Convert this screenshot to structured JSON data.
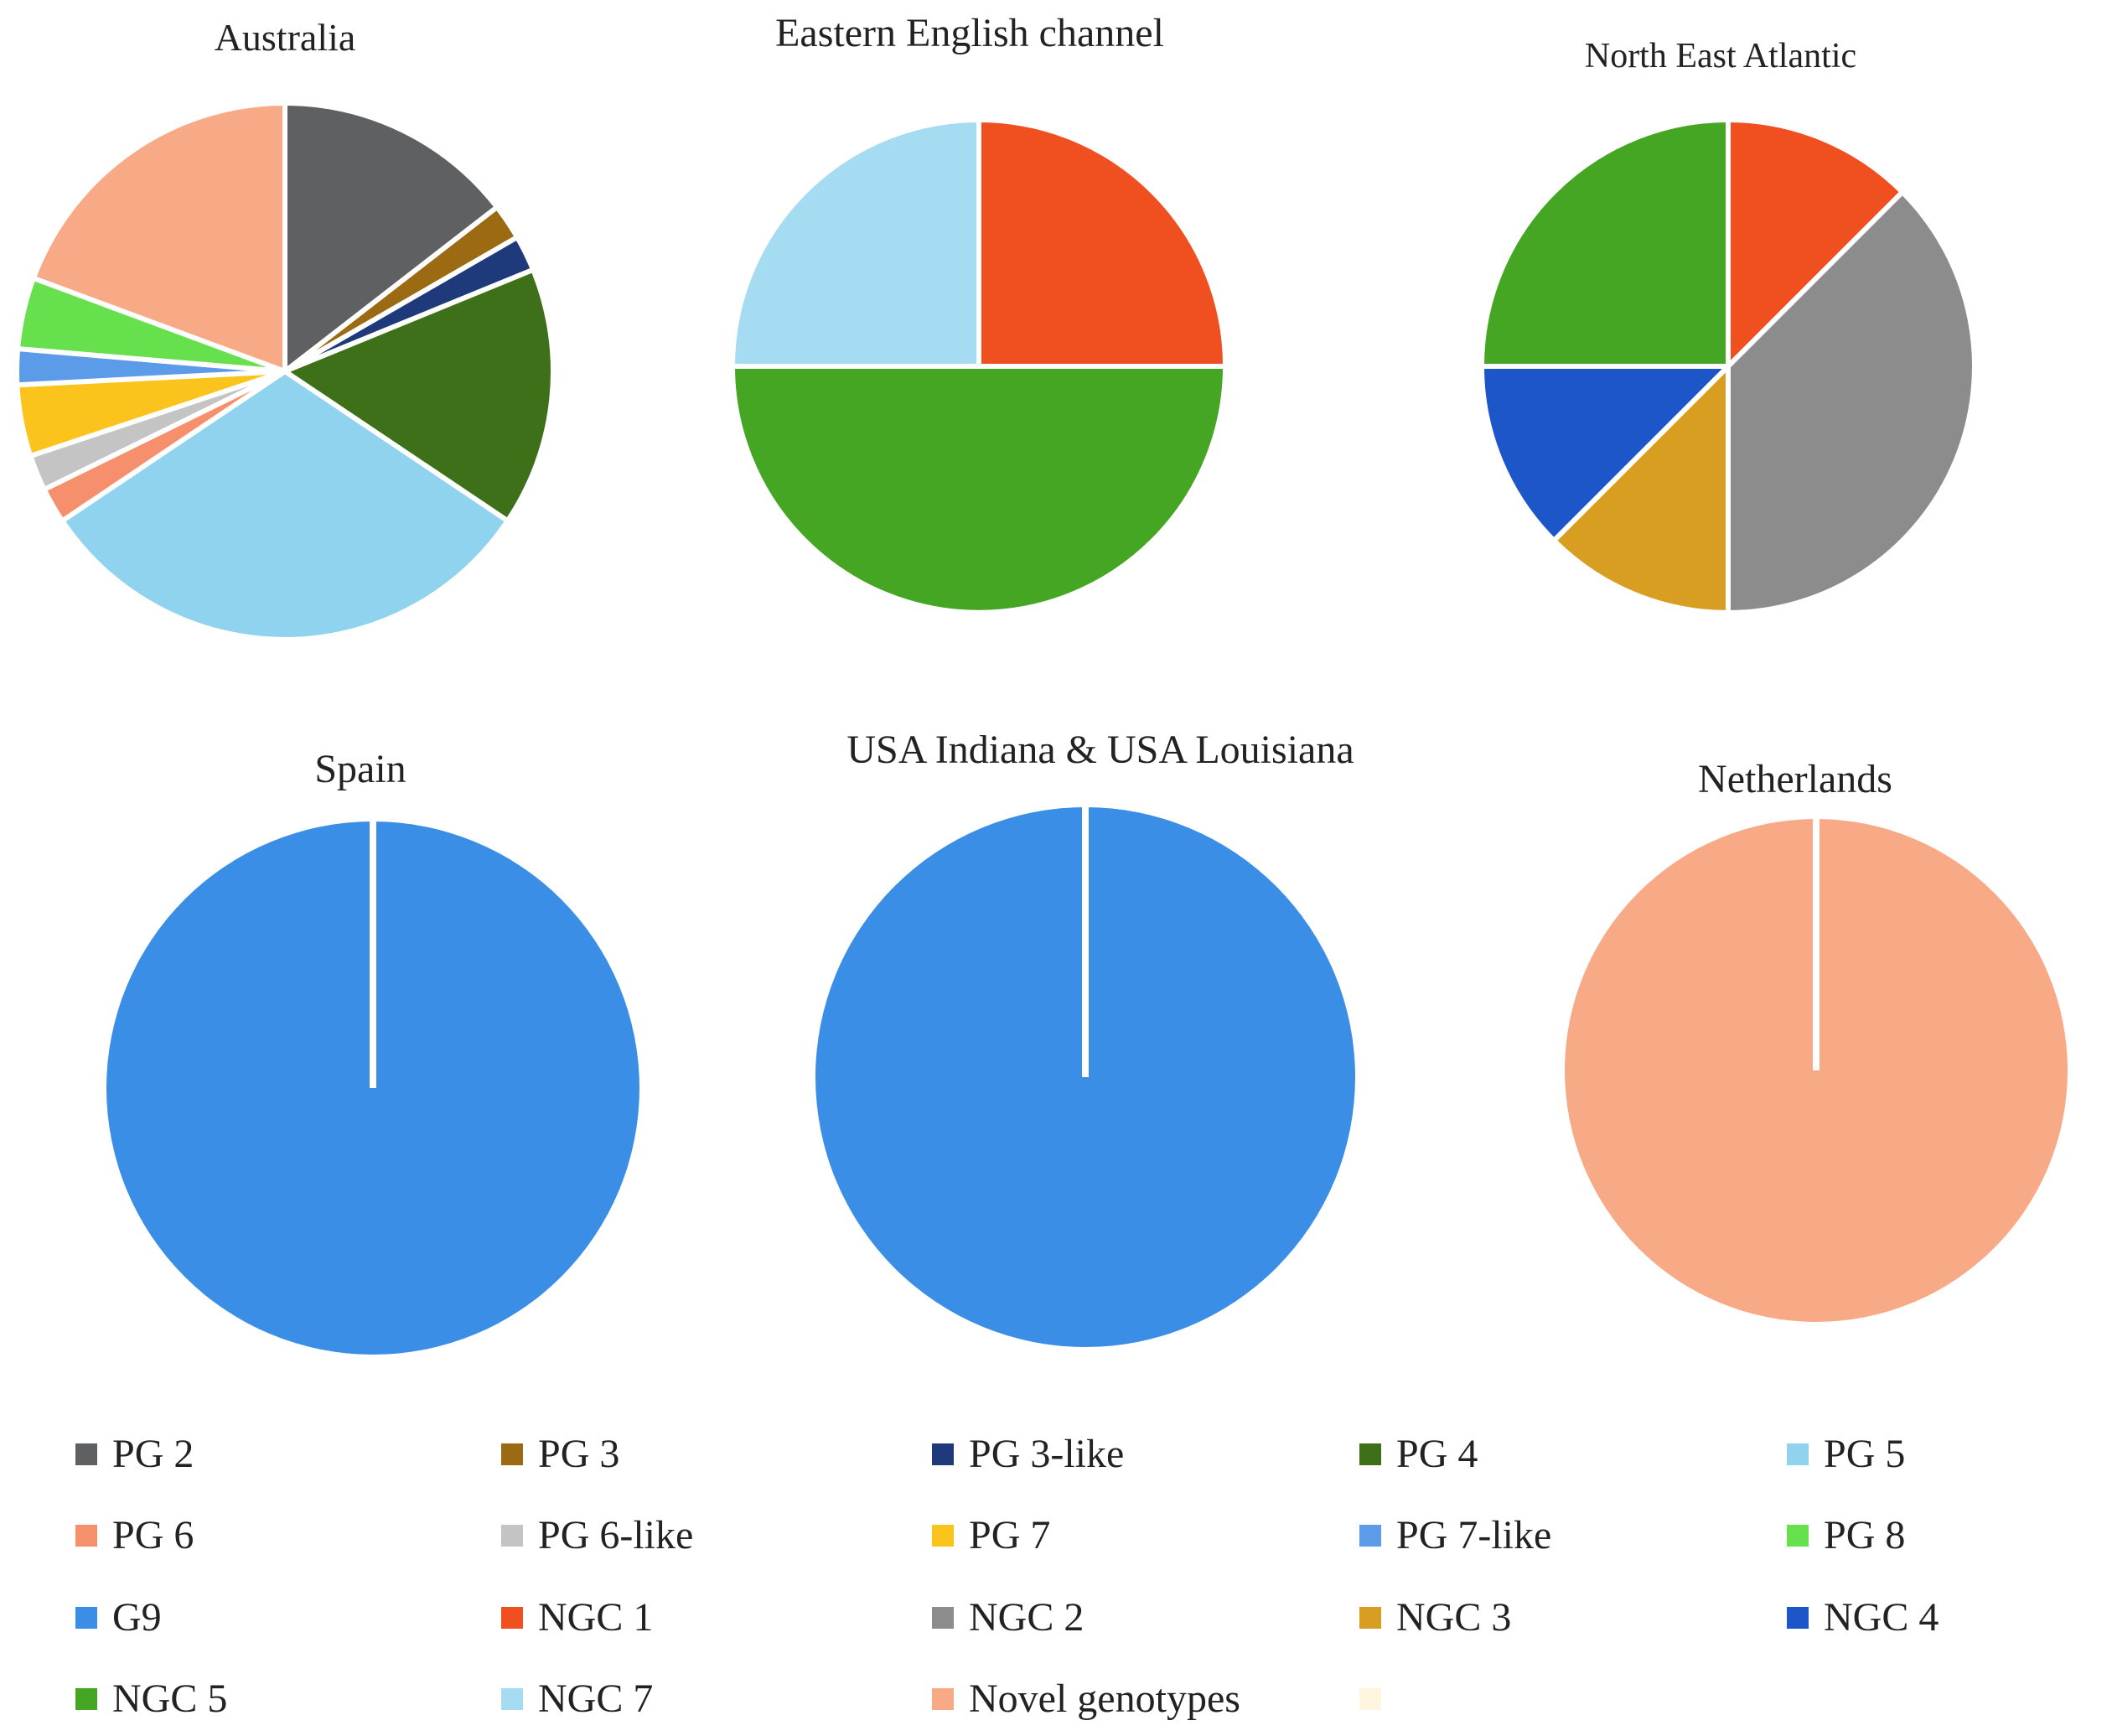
{
  "legend": [
    {
      "label": "PG 2",
      "color": "#5f6062"
    },
    {
      "label": "PG 3",
      "color": "#9c6a12"
    },
    {
      "label": "PG 3-like",
      "color": "#1f3a7a"
    },
    {
      "label": "PG 4",
      "color": "#3d7018"
    },
    {
      "label": "PG 5",
      "color": "#8fd3ee"
    },
    {
      "label": "PG 6",
      "color": "#f58f6c"
    },
    {
      "label": "PG 6-like",
      "color": "#c4c4c4"
    },
    {
      "label": "PG 7",
      "color": "#fbc41c"
    },
    {
      "label": "PG 7-like",
      "color": "#5b9be8"
    },
    {
      "label": "PG 8",
      "color": "#66e04c"
    },
    {
      "label": "G9",
      "color": "#3a8ee6"
    },
    {
      "label": "NGC 1",
      "color": "#f04f1f"
    },
    {
      "label": "NGC 2",
      "color": "#8c8c8c"
    },
    {
      "label": "NGC 3",
      "color": "#d89e22"
    },
    {
      "label": "NGC 4",
      "color": "#1c56c9"
    },
    {
      "label": "NGC 5",
      "color": "#44a623"
    },
    {
      "label": "NGC 7",
      "color": "#a6dcf2"
    },
    {
      "label": "Novel genotypes",
      "color": "#f8a986"
    },
    {
      "label": "",
      "color": "#fdf5dd"
    }
  ],
  "chart_data": [
    {
      "type": "pie",
      "title": "Australia",
      "slices": [
        {
          "label": "PG 2",
          "value": 13.5,
          "color": "#5f6062"
        },
        {
          "label": "PG 3",
          "value": 2,
          "color": "#9c6a12"
        },
        {
          "label": "PG 3-like",
          "value": 2,
          "color": "#1f3a7a"
        },
        {
          "label": "PG 4",
          "value": 14.5,
          "color": "#3d7018"
        },
        {
          "label": "PG 5",
          "value": 29,
          "color": "#8fd3ee"
        },
        {
          "label": "PG 6",
          "value": 2,
          "color": "#f58f6c"
        },
        {
          "label": "PG 6-like",
          "value": 2,
          "color": "#c4c4c4"
        },
        {
          "label": "PG 7",
          "value": 4,
          "color": "#fbc41c"
        },
        {
          "label": "PG 7-like",
          "value": 2,
          "color": "#5b9be8"
        },
        {
          "label": "PG 8",
          "value": 4,
          "color": "#66e04c"
        },
        {
          "label": "Novel genotypes",
          "value": 18,
          "color": "#f8a986"
        }
      ]
    },
    {
      "type": "pie",
      "title": "Eastern English channel",
      "slices": [
        {
          "label": "NGC 1",
          "value": 25,
          "color": "#f04f1f"
        },
        {
          "label": "NGC 5",
          "value": 50,
          "color": "#44a623"
        },
        {
          "label": "NGC 7",
          "value": 25,
          "color": "#a6dcf2"
        }
      ]
    },
    {
      "type": "pie",
      "title": "North East Atlantic",
      "slices": [
        {
          "label": "NGC 1",
          "value": 11.1,
          "color": "#f04f1f"
        },
        {
          "label": "NGC 2",
          "value": 33.3,
          "color": "#8c8c8c"
        },
        {
          "label": "NGC 3",
          "value": 11.1,
          "color": "#d89e22"
        },
        {
          "label": "NGC 4",
          "value": 11.1,
          "color": "#1c56c9"
        },
        {
          "label": "NGC 5",
          "value": 22.2,
          "color": "#44a623"
        }
      ]
    },
    {
      "type": "pie",
      "title": "Spain",
      "slices": [
        {
          "label": "G9",
          "value": 100,
          "color": "#3a8ee6"
        }
      ]
    },
    {
      "type": "pie",
      "title": "USA Indiana & USA Louisiana",
      "slices": [
        {
          "label": "G9",
          "value": 100,
          "color": "#3a8ee6"
        }
      ]
    },
    {
      "type": "pie",
      "title": "Netherlands",
      "slices": [
        {
          "label": "Novel genotypes",
          "value": 100,
          "color": "#f8a986"
        }
      ]
    }
  ]
}
